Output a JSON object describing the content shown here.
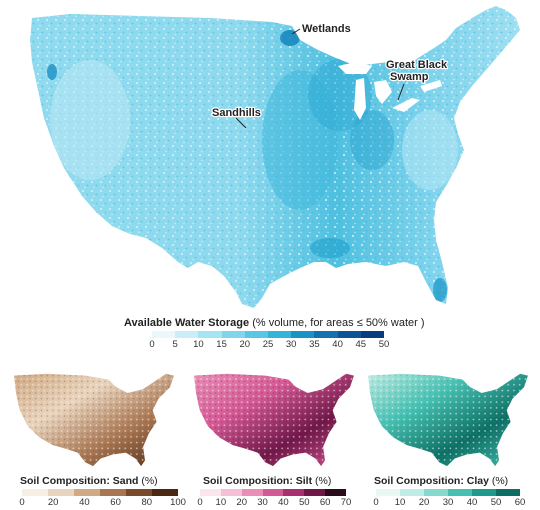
{
  "main_map": {
    "labels": {
      "wetlands": "Wetlands",
      "sandhills": "Sandhills",
      "great_black_swamp_line1": "Great Black",
      "great_black_swamp_line2": "Swamp"
    },
    "legend": {
      "title_bold": "Available Water Storage",
      "title_rest": "(% volume, for areas ≤ 50% water )",
      "ticks": [
        "0",
        "5",
        "10",
        "15",
        "20",
        "25",
        "30",
        "35",
        "40",
        "45",
        "50"
      ],
      "colors": [
        "#eaf8fc",
        "#c9eef8",
        "#a6e3f3",
        "#80d5ec",
        "#59c6e3",
        "#33b5d8",
        "#1a93c4",
        "#1272ad",
        "#0d5497",
        "#0a3a80"
      ]
    }
  },
  "small_maps": [
    {
      "id": "sand",
      "title_bold": "Soil Composition: Sand",
      "title_rest": "(%)",
      "ticks": [
        "0",
        "20",
        "40",
        "60",
        "80",
        "100"
      ],
      "colors": [
        "#f7efe6",
        "#e9d4bd",
        "#d0aa84",
        "#a87652",
        "#7a4a2c",
        "#4a2812"
      ]
    },
    {
      "id": "silt",
      "title_bold": "Soil Composition: Silt",
      "title_rest": "(%)",
      "ticks": [
        "0",
        "10",
        "20",
        "30",
        "40",
        "50",
        "60",
        "70"
      ],
      "colors": [
        "#fbe6ef",
        "#f5bfd6",
        "#e98fb7",
        "#d45a95",
        "#a8306f",
        "#6f1748",
        "#2a0b1c"
      ]
    },
    {
      "id": "clay",
      "title_bold": "Soil Composition: Clay",
      "title_rest": "(%)",
      "ticks": [
        "0",
        "10",
        "20",
        "30",
        "40",
        "50",
        "60"
      ],
      "colors": [
        "#e8f8f5",
        "#bfece4",
        "#86d9cd",
        "#47c0b2",
        "#1d9a8c",
        "#0d6e63"
      ]
    }
  ]
}
